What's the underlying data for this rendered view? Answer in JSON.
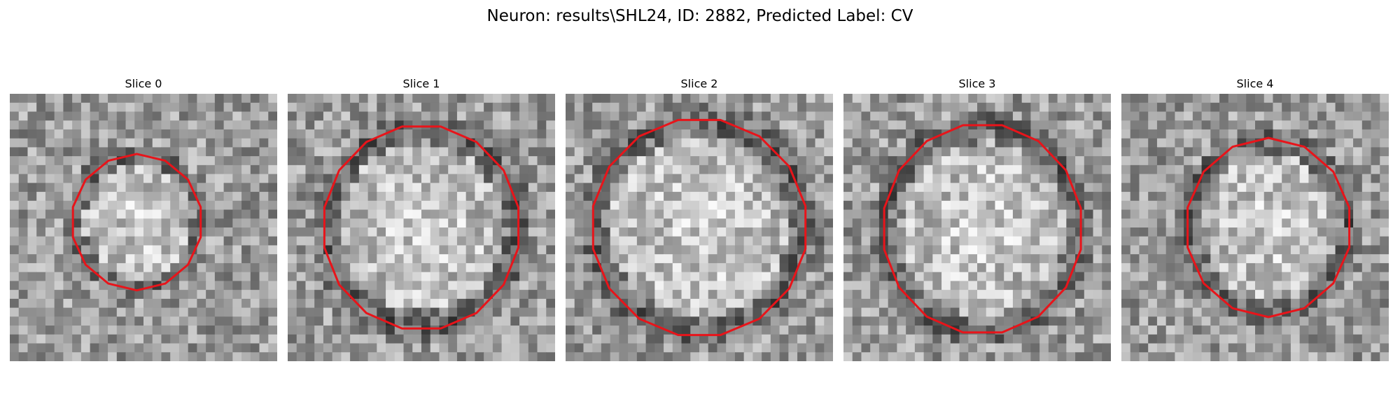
{
  "title": "Neuron: results\\SHL24, ID: 2882, Predicted Label: CV",
  "panels": [
    {
      "label": "Slice 0",
      "outline_color": "#e8141a",
      "seed": 11,
      "contour": {
        "center": [
          0.475,
          0.48
        ],
        "radius": [
          0.245,
          0.255
        ],
        "sides": 14
      }
    },
    {
      "label": "Slice 1",
      "outline_color": "#e8141a",
      "seed": 23,
      "contour": {
        "center": [
          0.5,
          0.5
        ],
        "radius": [
          0.37,
          0.385
        ],
        "sides": 16
      }
    },
    {
      "label": "Slice 2",
      "outline_color": "#e8141a",
      "seed": 37,
      "contour": {
        "center": [
          0.5,
          0.5
        ],
        "radius": [
          0.405,
          0.41
        ],
        "sides": 16
      }
    },
    {
      "label": "Slice 3",
      "outline_color": "#e8141a",
      "seed": 41,
      "contour": {
        "center": [
          0.52,
          0.505
        ],
        "radius": [
          0.375,
          0.395
        ],
        "sides": 16
      }
    },
    {
      "label": "Slice 4",
      "outline_color": "#e8141a",
      "seed": 53,
      "contour": {
        "center": [
          0.55,
          0.5
        ],
        "radius": [
          0.31,
          0.335
        ],
        "sides": 14
      }
    }
  ]
}
